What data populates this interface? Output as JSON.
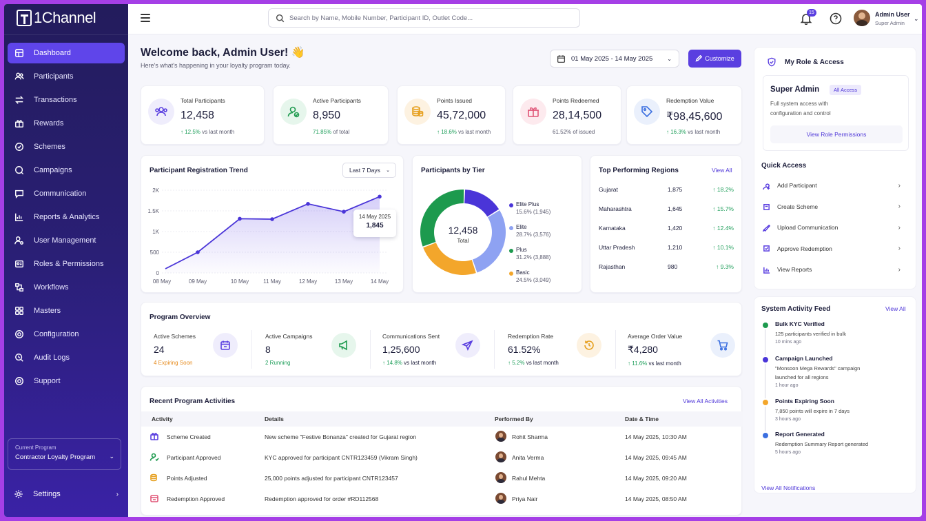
{
  "app": {
    "name": "1Channel"
  },
  "sidebar": {
    "items": [
      {
        "label": "Dashboard",
        "icon": "grid-icon",
        "active": true
      },
      {
        "label": "Participants",
        "icon": "users-icon"
      },
      {
        "label": "Transactions",
        "icon": "transfer-icon"
      },
      {
        "label": "Rewards",
        "icon": "gift-icon"
      },
      {
        "label": "Schemes",
        "icon": "badge-icon"
      },
      {
        "label": "Campaigns",
        "icon": "campaign-icon"
      },
      {
        "label": "Communication",
        "icon": "message-icon"
      },
      {
        "label": "Reports & Analytics",
        "icon": "chart-icon"
      },
      {
        "label": "User Management",
        "icon": "user-gear-icon"
      },
      {
        "label": "Roles & Permissions",
        "icon": "roles-icon"
      },
      {
        "label": "Workflows",
        "icon": "workflow-icon"
      },
      {
        "label": "Masters",
        "icon": "masters-icon"
      },
      {
        "label": "Configuration",
        "icon": "gear-icon"
      },
      {
        "label": "Audit Logs",
        "icon": "audit-icon"
      },
      {
        "label": "Support",
        "icon": "support-icon"
      }
    ],
    "current_program_label": "Current Program",
    "current_program_value": "Contractor Loyalty Program",
    "settings_label": "Settings"
  },
  "header": {
    "search_placeholder": "Search by Name, Mobile Number, Participant ID, Outlet Code...",
    "notification_count": "15",
    "user_name": "Admin User",
    "user_role": "Super Admin"
  },
  "welcome": {
    "title": "Welcome back, Admin User! 👋",
    "subtitle": "Here's what's happening in your loyalty program today.",
    "date_range": "01 May 2025 - 14 May 2025",
    "customize_label": "Customize"
  },
  "stats": [
    {
      "label": "Total Participants",
      "value": "12,458",
      "delta": "↑ 12.5%",
      "delta_suffix": " vs last month"
    },
    {
      "label": "Active Participants",
      "value": "8,950",
      "delta": "71.85%",
      "delta_suffix": " of total"
    },
    {
      "label": "Points Issued",
      "value": "45,72,000",
      "delta": "↑ 18.6%",
      "delta_suffix": " vs last month"
    },
    {
      "label": "Points Redeemed",
      "value": "28,14,500",
      "delta": "",
      "delta_suffix": "61.52% of issued"
    },
    {
      "label": "Redemption Value",
      "value": "₹98,45,600",
      "delta": "↑ 16.3%",
      "delta_suffix": " vs last month"
    }
  ],
  "registration_trend": {
    "title": "Participant Registration Trend",
    "range_label": "Last 7 Days",
    "tooltip_date": "14 May 2025",
    "tooltip_value": "1,845"
  },
  "chart_data": [
    {
      "type": "area",
      "title": "Participant Registration Trend",
      "x": [
        "08 May",
        "09 May",
        "10 May",
        "11 May",
        "12 May",
        "13 May",
        "14 May"
      ],
      "y_ticks": [
        "2K",
        "1.5K",
        "1K",
        "500",
        "0"
      ],
      "ylim": [
        0,
        2000
      ],
      "points": [
        {
          "x": "08 May",
          "y": 100
        },
        {
          "x": "08.75",
          "y": 500
        },
        {
          "x": "09.5",
          "y": 820
        },
        {
          "x": "10 May",
          "y": 1310
        },
        {
          "x": "11 May",
          "y": 1300
        },
        {
          "x": "12 May",
          "y": 1670
        },
        {
          "x": "13 May",
          "y": 1480
        },
        {
          "x": "14 May",
          "y": 1845
        }
      ],
      "grid": true
    },
    {
      "type": "pie",
      "title": "Participants by Tier",
      "center_value": "12,458",
      "center_label": "Total",
      "slices": [
        {
          "name": "Elite Plus",
          "pct": 15.6,
          "count": "1,945",
          "color": "#4a35d8"
        },
        {
          "name": "Elite",
          "pct": 28.7,
          "count": "3,576",
          "color": "#8ea2f2"
        },
        {
          "name": "Basic",
          "pct": 24.5,
          "count": "3,049",
          "color": "#f3a62b"
        },
        {
          "name": "Plus",
          "pct": 31.2,
          "count": "3,888",
          "color": "#1d9a4e"
        }
      ],
      "legend_order": [
        {
          "name": "Elite Plus",
          "text": "15.6% (1,945)",
          "color": "#4a35d8"
        },
        {
          "name": "Elite",
          "text": "28.7% (3,576)",
          "color": "#8ea2f2"
        },
        {
          "name": "Plus",
          "text": "31.2% (3,888)",
          "color": "#1d9a4e"
        },
        {
          "name": "Basic",
          "text": "24.5% (3,049)",
          "color": "#f3a62b"
        }
      ]
    }
  ],
  "regions": {
    "title": "Top Performing Regions",
    "view_all": "View All",
    "rows": [
      {
        "name": "Gujarat",
        "value": "1,875",
        "delta": "↑ 18.2%"
      },
      {
        "name": "Maharashtra",
        "value": "1,645",
        "delta": "↑ 15.7%"
      },
      {
        "name": "Karnataka",
        "value": "1,420",
        "delta": "↑ 12.4%"
      },
      {
        "name": "Uttar Pradesh",
        "value": "1,210",
        "delta": "↑ 10.1%"
      },
      {
        "name": "Rajasthan",
        "value": "980",
        "delta": "↑ 9.3%"
      }
    ]
  },
  "overview": {
    "title": "Program Overview",
    "items": [
      {
        "label": "Active Schemes",
        "value": "24",
        "sub": "4 Expiring Soon",
        "sub_color": "orange"
      },
      {
        "label": "Active Campaigns",
        "value": "8",
        "sub": "2 Running",
        "sub_color": "green"
      },
      {
        "label": "Communications Sent",
        "value": "1,25,600",
        "sub_delta": "↑ 14.8%",
        "sub": " vs last month"
      },
      {
        "label": "Redemption Rate",
        "value": "61.52%",
        "sub_delta": "↑ 5.2%",
        "sub": " vs last month"
      },
      {
        "label": "Average Order Value",
        "value": "₹4,280",
        "sub_delta": "↑ 11.6%",
        "sub": " vs last month"
      }
    ]
  },
  "activities": {
    "title": "Recent Program Activities",
    "view_all": "View All Activities",
    "headers": [
      "Activity",
      "Details",
      "Performed By",
      "Date & Time"
    ],
    "rows": [
      {
        "activity": "Scheme Created",
        "details": "New scheme \"Festive Bonanza\" created for Gujarat region",
        "by": "Rohit Sharma",
        "time": "14 May 2025, 10:30 AM"
      },
      {
        "activity": "Participant Approved",
        "details": "KYC approved for participant CNTR123459 (Vikram Singh)",
        "by": "Anita Verma",
        "time": "14 May 2025, 09:45 AM"
      },
      {
        "activity": "Points Adjusted",
        "details": "25,000 points adjusted for participant CNTR123457",
        "by": "Rahul Mehta",
        "time": "14 May 2025, 09:20 AM"
      },
      {
        "activity": "Redemption Approved",
        "details": "Redemption approved for order #RD112568",
        "by": "Priya Nair",
        "time": "14 May 2025, 08:50 AM"
      }
    ]
  },
  "role": {
    "title": "My Role & Access",
    "role_name": "Super Admin",
    "badge": "All Access",
    "desc1": "Full system access with",
    "desc2": "configuration and control",
    "view_perm": "View Role Permissions"
  },
  "quick_access": {
    "title": "Quick Access",
    "items": [
      "Add Participant",
      "Create Scheme",
      "Upload Communication",
      "Approve Redemption",
      "View Reports"
    ]
  },
  "feed": {
    "title": "System Activity Feed",
    "view_all": "View All",
    "items": [
      {
        "title": "Bulk KYC Verified",
        "d1": "125 participants verified in bulk",
        "d2": "",
        "time": "10 mins ago",
        "color": "#1d9a4e"
      },
      {
        "title": "Campaign Launched",
        "d1": "\"Monsoon Mega Rewards\" campaign",
        "d2": "launched for all regions",
        "time": "1 hour ago",
        "color": "#4a35d8"
      },
      {
        "title": "Points Expiring Soon",
        "d1": "7,850 points will expire in 7 days",
        "d2": "",
        "time": "3 hours ago",
        "color": "#f3a62b"
      },
      {
        "title": "Report Generated",
        "d1": "Redemption Summary Report generated",
        "d2": "",
        "time": "5 hours ago",
        "color": "#3b6fe0"
      }
    ],
    "view_notifications": "View All Notifications"
  }
}
